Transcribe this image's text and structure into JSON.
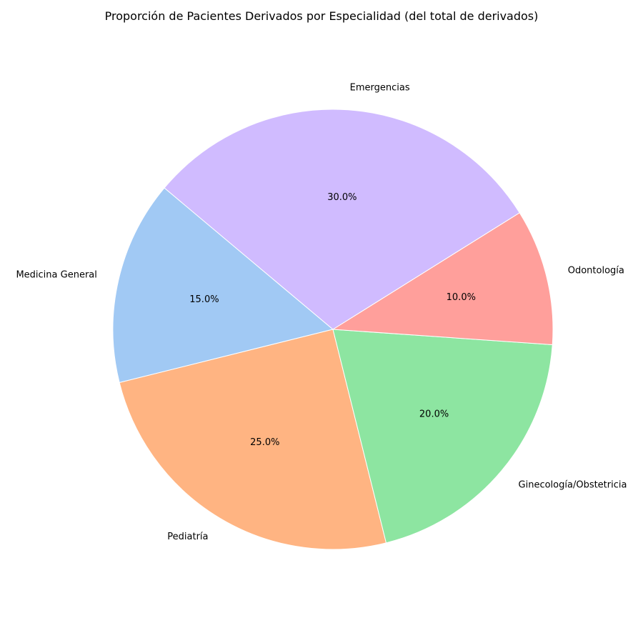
{
  "chart_data": {
    "type": "pie",
    "title": "Proporción de Pacientes Derivados por Especialidad (del total de derivados)",
    "categories": [
      "Medicina General",
      "Pediatría",
      "Ginecología/Obstetricia",
      "Odontología",
      "Emergencias"
    ],
    "values": [
      15.0,
      25.0,
      20.0,
      10.0,
      30.0
    ],
    "percent_labels": [
      "15.0%",
      "25.0%",
      "20.0%",
      "10.0%",
      "30.0%"
    ],
    "colors": [
      "#a1c9f4",
      "#ffb482",
      "#8de5a1",
      "#ff9f9b",
      "#d0bbff"
    ],
    "start_angle_deg": 140,
    "direction": "counterclockwise"
  }
}
